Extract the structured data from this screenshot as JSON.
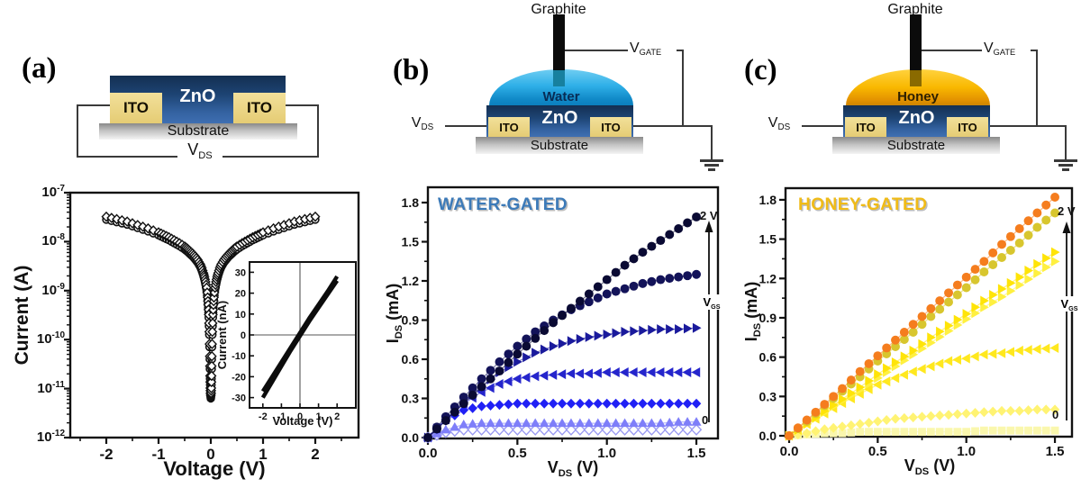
{
  "panels": {
    "a": {
      "label": "(a)",
      "zno": "ZnO",
      "ito_left": "ITO",
      "ito_right": "ITO",
      "substrate": "Substrate",
      "vds_base": "V",
      "vds_sub": "DS"
    },
    "b": {
      "label": "(b)",
      "graphite": "Graphite",
      "liquid": "Water",
      "zno": "ZnO",
      "ito_left": "ITO",
      "ito_right": "ITO",
      "substrate": "Substrate",
      "vds_base": "V",
      "vds_sub": "DS",
      "vgate_base": "V",
      "vgate_sub": "GATE"
    },
    "c": {
      "label": "(c)",
      "graphite": "Graphite",
      "liquid": "Honey",
      "zno": "ZnO",
      "ito_left": "ITO",
      "ito_right": "ITO",
      "substrate": "Substrate",
      "vds_base": "V",
      "vds_sub": "DS",
      "vgate_base": "V",
      "vgate_sub": "GATE"
    }
  },
  "chart_data": [
    {
      "id": "iv_log",
      "type": "scatter",
      "y_scale": "log",
      "xlabel": "Voltage (V)",
      "ylabel": "Current (A)",
      "x_ticks": [
        -2,
        -1,
        0,
        1,
        2
      ],
      "y_tick_exponents": [
        -7,
        -8,
        -9,
        -10,
        -11,
        -12
      ],
      "ylim_exponents": [
        -12,
        -7
      ],
      "note": "two sweeps (open circles, open diamonds), symmetric in voltage",
      "v_abs": [
        0,
        0.005,
        0.01,
        0.015,
        0.02,
        0.03,
        0.04,
        0.05,
        0.06,
        0.08,
        0.1,
        0.12,
        0.14,
        0.17,
        0.2,
        0.25,
        0.3,
        0.35,
        0.4,
        0.45,
        0.5,
        0.6,
        0.7,
        0.8,
        0.9,
        1.0,
        1.2,
        1.4,
        1.6,
        1.8,
        2.0
      ],
      "log10_current_circles": [
        -11.2,
        -11.15,
        -11.05,
        -10.8,
        -10.4,
        -9.9,
        -9.55,
        -9.35,
        -9.2,
        -9.0,
        -8.88,
        -8.78,
        -8.7,
        -8.6,
        -8.52,
        -8.43,
        -8.36,
        -8.3,
        -8.25,
        -8.2,
        -8.16,
        -8.09,
        -8.03,
        -7.97,
        -7.92,
        -7.87,
        -7.79,
        -7.72,
        -7.65,
        -7.6,
        -7.55
      ],
      "log10_current_diamonds": [
        -11.14,
        -11.09,
        -10.99,
        -10.74,
        -10.34,
        -9.84,
        -9.49,
        -9.29,
        -9.14,
        -8.94,
        -8.82,
        -8.72,
        -8.64,
        -8.54,
        -8.46,
        -8.37,
        -8.3,
        -8.24,
        -8.19,
        -8.14,
        -8.1,
        -8.03,
        -7.97,
        -7.91,
        -7.86,
        -7.81,
        -7.73,
        -7.66,
        -7.59,
        -7.54,
        -7.49
      ]
    },
    {
      "id": "iv_linear_inset",
      "type": "line",
      "xlabel": "Voltage (V)",
      "ylabel": "Current (nA)",
      "x_ticks": [
        -2,
        -1,
        0,
        1,
        2
      ],
      "y_ticks": [
        30,
        20,
        10,
        0,
        -10,
        -20,
        -30
      ],
      "x": [
        -2,
        -1.5,
        -1,
        -0.5,
        0,
        0.5,
        1,
        1.5,
        2
      ],
      "y_lower": [
        -30,
        -22.5,
        -15,
        -7.5,
        -0.5,
        6.5,
        13,
        19.5,
        26
      ],
      "y_upper": [
        -27,
        -20,
        -13,
        -6,
        1,
        8,
        14.5,
        21,
        28
      ]
    },
    {
      "id": "water_output",
      "type": "scatter",
      "title": "WATER-GATED",
      "title_color": "#3c7ab8",
      "ylabel_base": "I",
      "ylabel_sub": "DS",
      "ylabel_unit": " (mA)",
      "xlabel_base": "V",
      "xlabel_sub": "DS",
      "xlabel_unit": " (V)",
      "x_ticks": [
        0,
        0.5,
        1,
        1.5
      ],
      "y_ticks": [
        0,
        0.3,
        0.6,
        0.9,
        1.2,
        1.5,
        1.8
      ],
      "xlim": [
        0,
        1.62
      ],
      "ylim": [
        0,
        1.92
      ],
      "gate_annotation_top": "2 V",
      "gate_annotation_bottom": "0",
      "gate_arrow_label_base": "V",
      "gate_arrow_label_sub": "GS",
      "x": {
        "start": 0,
        "step": 0.1,
        "count": 16
      },
      "series": [
        {
          "marker": "circle",
          "color": "#0a0a33",
          "y": [
            0,
            0.13,
            0.26,
            0.39,
            0.51,
            0.64,
            0.76,
            0.88,
            0.99,
            1.1,
            1.21,
            1.32,
            1.42,
            1.51,
            1.6,
            1.69
          ]
        },
        {
          "marker": "circle",
          "color": "#131359",
          "y": [
            0,
            0.16,
            0.31,
            0.45,
            0.58,
            0.7,
            0.81,
            0.9,
            0.98,
            1.04,
            1.1,
            1.14,
            1.18,
            1.21,
            1.23,
            1.25
          ]
        },
        {
          "marker": "triangle-right",
          "color": "#1a1a9c",
          "y": [
            0,
            0.14,
            0.27,
            0.39,
            0.5,
            0.58,
            0.65,
            0.7,
            0.74,
            0.77,
            0.79,
            0.81,
            0.82,
            0.83,
            0.83,
            0.84
          ]
        },
        {
          "marker": "triangle-left",
          "color": "#2525cc",
          "y": [
            0,
            0.14,
            0.26,
            0.35,
            0.41,
            0.45,
            0.47,
            0.48,
            0.49,
            0.49,
            0.5,
            0.5,
            0.5,
            0.5,
            0.5,
            0.5
          ]
        },
        {
          "marker": "diamond",
          "color": "#2020f5",
          "y": [
            0,
            0.13,
            0.21,
            0.24,
            0.25,
            0.26,
            0.26,
            0.26,
            0.26,
            0.26,
            0.26,
            0.26,
            0.26,
            0.26,
            0.26,
            0.26
          ]
        },
        {
          "marker": "triangle-up",
          "color": "#7e7ef9",
          "y": [
            0,
            0.06,
            0.1,
            0.11,
            0.11,
            0.11,
            0.11,
            0.11,
            0.11,
            0.11,
            0.11,
            0.11,
            0.11,
            0.11,
            0.12,
            0.12
          ]
        },
        {
          "marker": "diamond-open",
          "color": "#9a9af2",
          "y": [
            0,
            0.04,
            0.06,
            0.06,
            0.06,
            0.06,
            0.06,
            0.06,
            0.06,
            0.06,
            0.06,
            0.06,
            0.06,
            0.06,
            0.06,
            0.06
          ]
        }
      ]
    },
    {
      "id": "honey_output",
      "type": "scatter",
      "title": "HONEY-GATED",
      "title_color": "#f0bb17",
      "ylabel_base": "I",
      "ylabel_sub": "DS",
      "ylabel_unit": " (mA)",
      "xlabel_base": "V",
      "xlabel_sub": "DS",
      "xlabel_unit": " (V)",
      "x_ticks": [
        0,
        0.5,
        1,
        1.5
      ],
      "y_ticks": [
        0,
        0.3,
        0.6,
        0.9,
        1.2,
        1.5,
        1.8
      ],
      "xlim": [
        0,
        1.6
      ],
      "ylim": [
        0,
        1.9
      ],
      "gate_annotation_top": "2 V",
      "gate_annotation_bottom": "0",
      "gate_arrow_label_base": "V",
      "gate_arrow_label_sub": "GS",
      "x": {
        "start": 0,
        "step": 0.1,
        "count": 16
      },
      "series": [
        {
          "marker": "circle",
          "color": "#f57d1e",
          "y": [
            0,
            0.12,
            0.24,
            0.36,
            0.49,
            0.61,
            0.73,
            0.85,
            0.97,
            1.09,
            1.21,
            1.33,
            1.46,
            1.58,
            1.7,
            1.82
          ]
        },
        {
          "marker": "circle",
          "color": "#d8c62e",
          "y": [
            0,
            0.11,
            0.23,
            0.34,
            0.45,
            0.57,
            0.68,
            0.79,
            0.91,
            1.02,
            1.13,
            1.25,
            1.36,
            1.47,
            1.59,
            1.7
          ]
        },
        {
          "marker": "triangle-right",
          "color": "#ffe408",
          "y": [
            0,
            0.09,
            0.19,
            0.28,
            0.37,
            0.47,
            0.56,
            0.65,
            0.75,
            0.84,
            0.93,
            1.03,
            1.12,
            1.21,
            1.31,
            1.4
          ]
        },
        {
          "marker": "triangle-right",
          "color": "#fff040",
          "y": [
            0,
            0.09,
            0.18,
            0.27,
            0.35,
            0.44,
            0.53,
            0.62,
            0.71,
            0.8,
            0.89,
            0.98,
            1.06,
            1.15,
            1.24,
            1.33
          ]
        },
        {
          "marker": "triangle-left",
          "color": "#ffe81e",
          "y": [
            0,
            0.09,
            0.17,
            0.25,
            0.32,
            0.39,
            0.44,
            0.49,
            0.53,
            0.57,
            0.59,
            0.62,
            0.63,
            0.65,
            0.66,
            0.67
          ]
        },
        {
          "marker": "diamond",
          "color": "#fff373",
          "y": [
            0,
            0.02,
            0.05,
            0.07,
            0.09,
            0.11,
            0.13,
            0.14,
            0.15,
            0.16,
            0.17,
            0.18,
            0.19,
            0.19,
            0.2,
            0.2
          ]
        },
        {
          "marker": "square",
          "color": "#faf7ad",
          "y": [
            0,
            0.01,
            0.02,
            0.02,
            0.03,
            0.03,
            0.03,
            0.03,
            0.03,
            0.03,
            0.03,
            0.04,
            0.04,
            0.04,
            0.04,
            0.04
          ]
        }
      ]
    }
  ]
}
